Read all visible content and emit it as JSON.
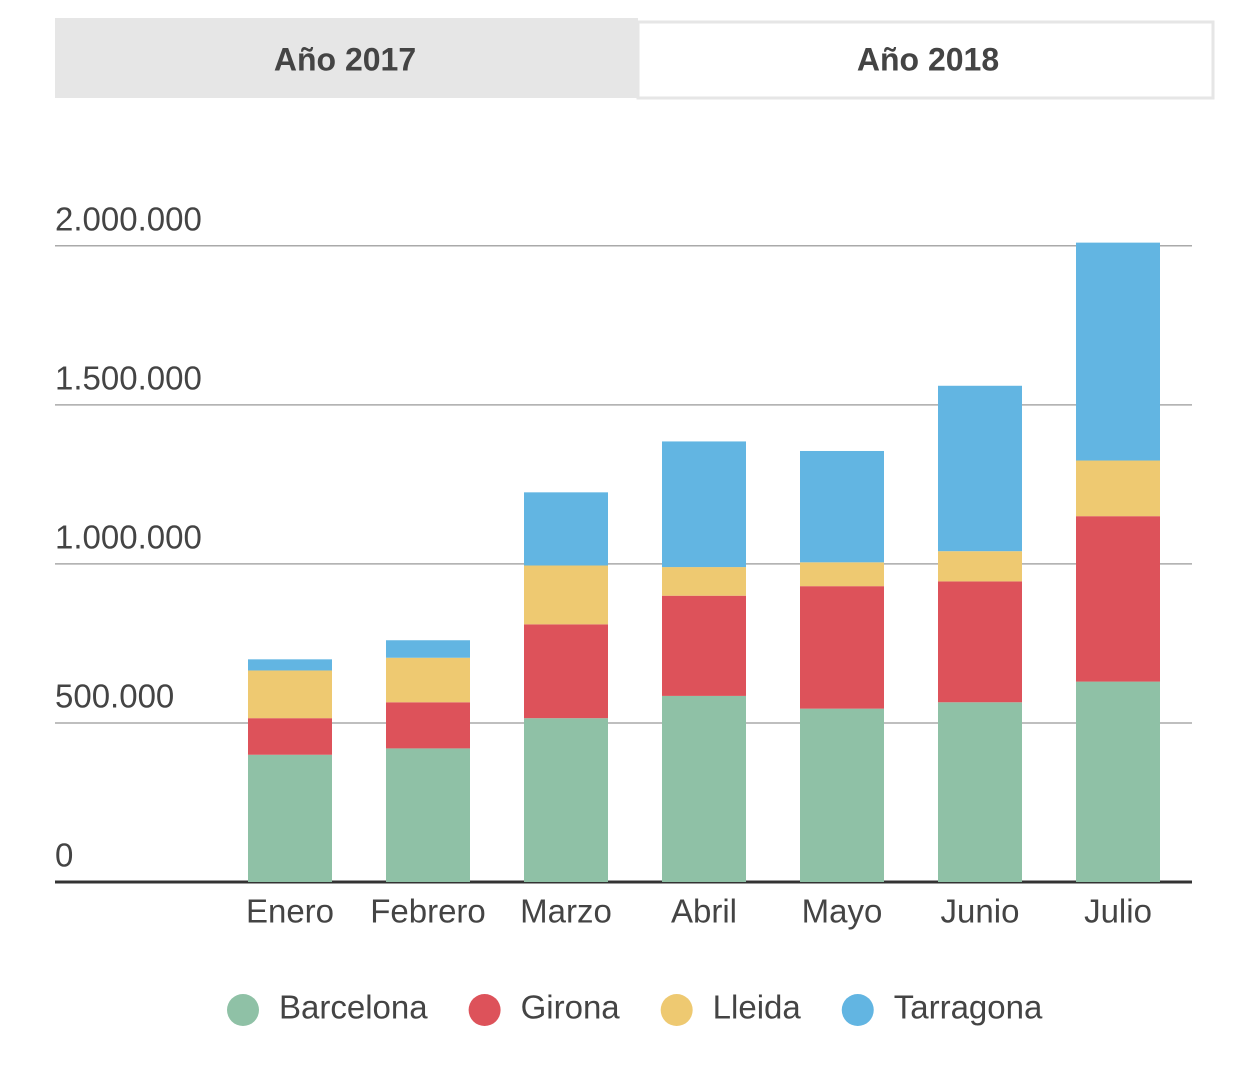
{
  "tabs": [
    "Año 2017",
    "Año 2018"
  ],
  "active_tab": 1,
  "chart_data": {
    "type": "stacked-bar",
    "categories": [
      "Enero",
      "Febrero",
      "Marzo",
      "Abril",
      "Mayo",
      "Junio",
      "Julio"
    ],
    "series": [
      {
        "name": "Barcelona",
        "color": "#8fc1a6",
        "values": [
          400000,
          420000,
          515000,
          585000,
          545000,
          565000,
          630000
        ]
      },
      {
        "name": "Girona",
        "color": "#dd525a",
        "values": [
          115000,
          145000,
          295000,
          315000,
          385000,
          380000,
          520000
        ]
      },
      {
        "name": "Lleida",
        "color": "#eec971",
        "values": [
          150000,
          140000,
          185000,
          90000,
          75000,
          95000,
          175000
        ]
      },
      {
        "name": "Tarragona",
        "color": "#62b5e2",
        "values": [
          35000,
          55000,
          230000,
          395000,
          350000,
          520000,
          685000
        ]
      }
    ],
    "ylim": [
      0,
      2100000
    ],
    "yticks": [
      0,
      {
        "value": 500000,
        "label": "500.000"
      },
      {
        "value": 1000000,
        "label": "1.000.000"
      },
      {
        "value": 1500000,
        "label": "1.500.000"
      },
      {
        "value": 2000000,
        "label": "2.000.000"
      }
    ],
    "grid": true
  }
}
